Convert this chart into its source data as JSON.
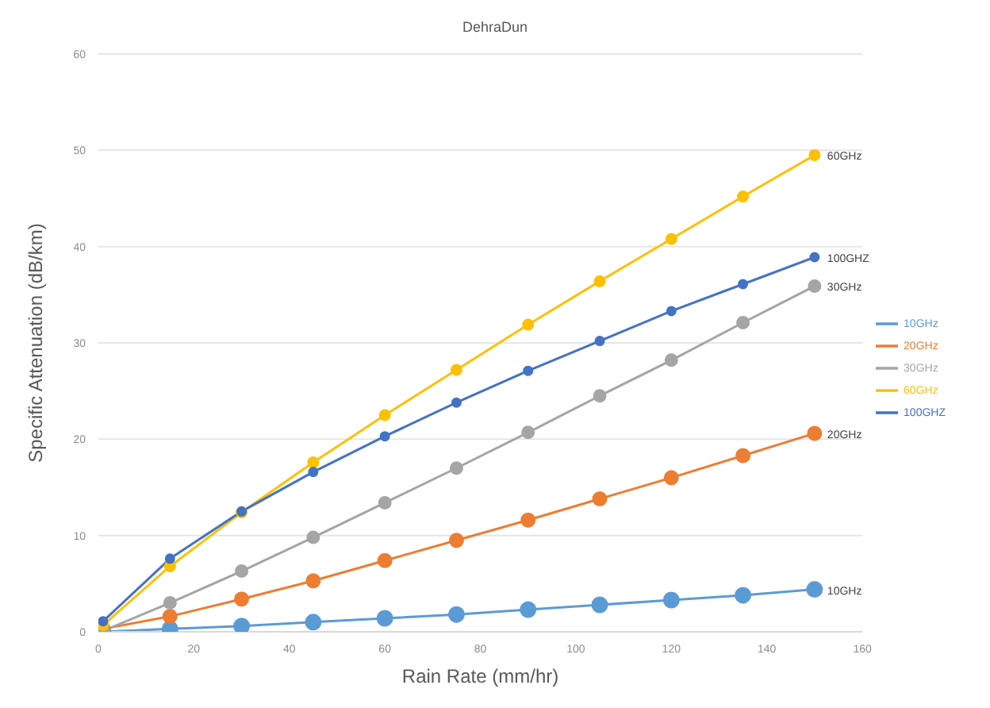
{
  "chart_data": {
    "type": "line",
    "title": "DehraDun",
    "xlabel": "Rain Rate (mm/hr)",
    "ylabel": "Specific Attenuation (dB/km)",
    "x": [
      1,
      15,
      30,
      45,
      60,
      75,
      90,
      105,
      120,
      135,
      150
    ],
    "series": [
      {
        "name": "10GHz",
        "color": "#5b9bd5",
        "values": [
          0,
          0.3,
          0.6,
          1.0,
          1.4,
          1.8,
          2.3,
          2.8,
          3.3,
          3.8,
          4.4
        ]
      },
      {
        "name": "20GHz",
        "color": "#ed7d31",
        "values": [
          0.3,
          1.6,
          3.4,
          5.3,
          7.4,
          9.5,
          11.6,
          13.8,
          16.0,
          18.3,
          20.6
        ]
      },
      {
        "name": "30GHz",
        "color": "#a5a5a5",
        "values": [
          0.1,
          3.0,
          6.3,
          9.8,
          13.4,
          17.0,
          20.7,
          24.5,
          28.2,
          32.1,
          35.9
        ]
      },
      {
        "name": "60GHz",
        "color": "#ffc000",
        "values": [
          0.7,
          6.8,
          12.4,
          17.6,
          22.5,
          27.2,
          31.9,
          36.4,
          40.8,
          45.2,
          49.5
        ]
      },
      {
        "name": "100GHZ",
        "color": "#4472c4",
        "values": [
          1.1,
          7.6,
          12.5,
          16.6,
          20.3,
          23.8,
          27.1,
          30.2,
          33.3,
          36.1,
          38.9
        ]
      }
    ],
    "xlim": [
      0,
      160
    ],
    "xticks": [
      0,
      20,
      40,
      60,
      80,
      100,
      120,
      140,
      160
    ],
    "ylim": [
      0,
      60
    ],
    "yticks": [
      0,
      10,
      20,
      30,
      40,
      50,
      60
    ],
    "grid": "y",
    "legend": "right",
    "marker": "circle",
    "line_style": "solid"
  }
}
